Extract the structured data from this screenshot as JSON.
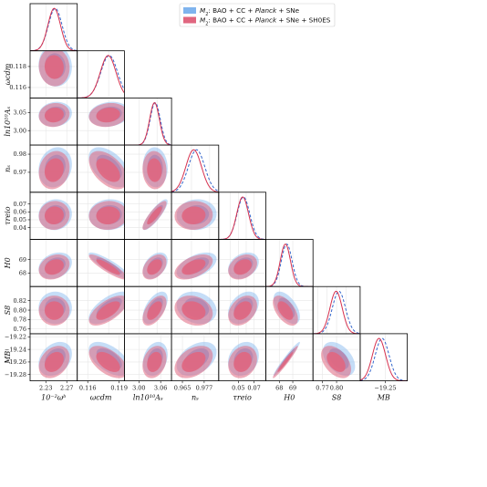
{
  "chart_data": {
    "type": "triangle-corner-plot",
    "legend": {
      "placement": "top-center",
      "entries": [
        {
          "parts": [
            {
              "t": "M",
              "it": true
            },
            {
              "t": "2",
              "sub": true
            },
            {
              "t": ": BAO + CC + "
            },
            {
              "t": "Planck",
              "it": true
            },
            {
              "t": " + SNe"
            }
          ],
          "color": "#7fb4ee"
        },
        {
          "parts": [
            {
              "t": "M",
              "it": true
            },
            {
              "t": "2",
              "sub": true
            },
            {
              "t": ": BAO + CC + "
            },
            {
              "t": "Planck",
              "it": true
            },
            {
              "t": " + SNe + SH0ES"
            }
          ],
          "color": "#e0667f"
        }
      ]
    },
    "colors": {
      "series1": "#7fb4ee",
      "series1_line": "#3366cc",
      "series2": "#e0667f",
      "series2_line": "#d6304e",
      "frame": "#000000",
      "grid": "#e6e6e6"
    },
    "parameters": [
      {
        "label": "10⁻²ωᵇ",
        "range": [
          2.2,
          2.29
        ],
        "ticks": [
          2.23,
          2.27
        ],
        "tick_labels": [
          "2.23",
          "2.27"
        ]
      },
      {
        "label": "ωcdm",
        "range": [
          0.115,
          0.1195
        ],
        "ticks": [
          0.116,
          0.118
        ],
        "tick_labels": [
          "0.116",
          "0.118"
        ]
      },
      {
        "label": "ln10¹⁰Aₛ",
        "range": [
          2.96,
          3.09
        ],
        "ticks": [
          3.0,
          3.05
        ],
        "tick_labels": [
          "3.00",
          "3.05"
        ]
      },
      {
        "label": "nₛ",
        "range": [
          0.959,
          0.985
        ],
        "ticks": [
          0.97,
          0.98
        ],
        "tick_labels": [
          "0.97",
          "0.98"
        ]
      },
      {
        "label": "τreio",
        "range": [
          0.025,
          0.085
        ],
        "ticks": [
          0.04,
          0.05,
          0.06,
          0.07
        ],
        "tick_labels": [
          "0.04",
          "0.05",
          "0.06",
          "0.07"
        ]
      },
      {
        "label": "H0",
        "range": [
          67.0,
          70.5
        ],
        "ticks": [
          68,
          69
        ],
        "tick_labels": [
          "68",
          "69"
        ]
      },
      {
        "label": "S8",
        "range": [
          0.75,
          0.85
        ],
        "ticks": [
          0.76,
          0.78,
          0.8,
          0.82
        ],
        "tick_labels": [
          "0.76",
          "0.78",
          "0.80",
          "0.82"
        ]
      },
      {
        "label": "MB",
        "range": [
          -19.29,
          -19.215
        ],
        "ticks": [
          -19.28,
          -19.26,
          -19.24,
          -19.22
        ],
        "tick_labels": [
          "−19.28",
          "−19.26",
          "−19.24",
          "−19.22"
        ]
      }
    ],
    "x_axis_ticks": [
      {
        "ticks": [
          2.23,
          2.27
        ],
        "tick_labels": [
          "2.23",
          "2.27"
        ]
      },
      {
        "ticks": [
          0.116,
          0.119
        ],
        "tick_labels": [
          "0.116",
          "0.119"
        ]
      },
      {
        "ticks": [
          3.0,
          3.06
        ],
        "tick_labels": [
          "3.00",
          "3.06"
        ]
      },
      {
        "ticks": [
          0.965,
          0.977
        ],
        "tick_labels": [
          "0.965",
          "0.977"
        ]
      },
      {
        "ticks": [
          0.05,
          0.07
        ],
        "tick_labels": [
          "0.05",
          "0.07"
        ]
      },
      {
        "ticks": [
          68,
          69
        ],
        "tick_labels": [
          "68",
          "69"
        ]
      },
      {
        "ticks": [
          0.77,
          0.8
        ],
        "tick_labels": [
          "0.77",
          "0.80"
        ]
      },
      {
        "ticks": [
          -19.25
        ],
        "tick_labels": [
          "−19.25"
        ]
      }
    ],
    "series": [
      {
        "name": "M2: BAO + CC + Planck + SNe",
        "mean": [
          2.248,
          0.11805,
          3.045,
          0.9728,
          0.0565,
          68.55,
          0.805,
          -19.255
        ],
        "sigma": [
          0.013,
          0.0008,
          0.014,
          0.0045,
          0.008,
          0.4,
          0.014,
          0.011
        ]
      },
      {
        "name": "M2: BAO + CC + Planck + SNe + SH0ES",
        "mean": [
          2.246,
          0.11795,
          3.043,
          0.9712,
          0.0555,
          68.45,
          0.799,
          -19.26
        ],
        "sigma": [
          0.012,
          0.00075,
          0.0135,
          0.0043,
          0.0075,
          0.38,
          0.013,
          0.0105
        ]
      }
    ],
    "correlations": [
      [
        1.0,
        -0.05,
        0.1,
        0.15,
        0.05,
        0.25,
        0.0,
        0.3
      ],
      [
        -0.05,
        1.0,
        0.15,
        -0.5,
        0.05,
        -0.88,
        0.65,
        -0.55
      ],
      [
        0.1,
        0.15,
        1.0,
        -0.05,
        0.85,
        0.4,
        0.55,
        0.25
      ],
      [
        0.15,
        -0.5,
        -0.05,
        1.0,
        0.05,
        0.5,
        -0.2,
        0.4
      ],
      [
        0.05,
        0.05,
        0.85,
        0.05,
        1.0,
        0.3,
        0.35,
        0.2
      ],
      [
        0.25,
        -0.88,
        0.4,
        0.5,
        0.3,
        1.0,
        -0.55,
        0.97
      ],
      [
        0.0,
        0.65,
        0.55,
        -0.2,
        0.35,
        -0.55,
        1.0,
        -0.45
      ],
      [
        0.3,
        -0.55,
        0.25,
        0.4,
        0.2,
        0.97,
        -0.45,
        1.0
      ]
    ],
    "contour_levels": [
      "68%",
      "95%"
    ],
    "grid": true
  }
}
